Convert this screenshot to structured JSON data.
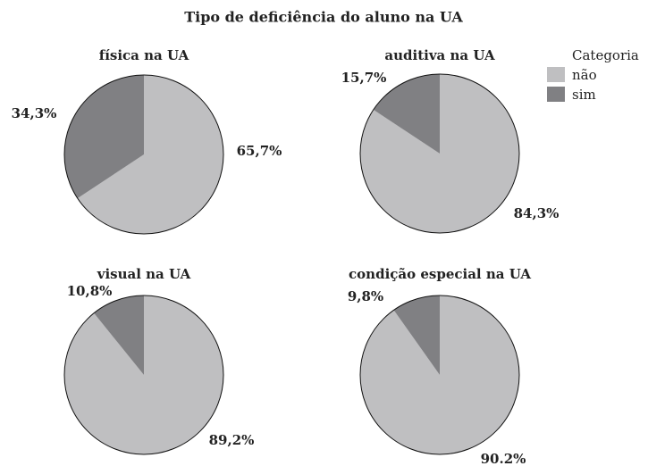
{
  "title": "Tipo de deficiência do aluno na UA",
  "legend": {
    "title": "Categoria"
  },
  "chart_data": [
    {
      "type": "pie",
      "title": "física na UA",
      "categories": [
        "não",
        "sim"
      ],
      "values": [
        65.7,
        34.3
      ],
      "value_labels": [
        "65,7%",
        "34,3%"
      ],
      "colors": [
        "#bfbfc1",
        "#808083"
      ]
    },
    {
      "type": "pie",
      "title": "auditiva na UA",
      "categories": [
        "não",
        "sim"
      ],
      "values": [
        84.3,
        15.7
      ],
      "value_labels": [
        "84,3%",
        "15,7%"
      ],
      "colors": [
        "#bfbfc1",
        "#808083"
      ]
    },
    {
      "type": "pie",
      "title": "visual na UA",
      "categories": [
        "não",
        "sim"
      ],
      "values": [
        89.2,
        10.8
      ],
      "value_labels": [
        "89,2%",
        "10,8%"
      ],
      "colors": [
        "#bfbfc1",
        "#808083"
      ]
    },
    {
      "type": "pie",
      "title": "condição especial na UA",
      "categories": [
        "não",
        "sim"
      ],
      "values": [
        90.2,
        9.8
      ],
      "value_labels": [
        "90.2%",
        "9,8%"
      ],
      "colors": [
        "#bfbfc1",
        "#808083"
      ]
    }
  ]
}
